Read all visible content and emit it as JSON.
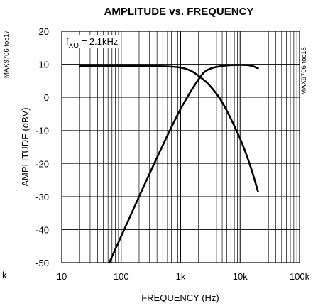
{
  "chart_data": {
    "type": "line",
    "title": "AMPLITUDE vs. FREQUENCY",
    "xlabel": "FREQUENCY (Hz)",
    "ylabel": "AMPLITUDE (dBV)",
    "x_scale": "log",
    "xlim": [
      10,
      100000
    ],
    "ylim": [
      -50,
      20
    ],
    "x_tick_labels": [
      "10",
      "100",
      "1k",
      "10k",
      "100k"
    ],
    "x_tick_values": [
      10,
      100,
      1000,
      10000,
      100000
    ],
    "y_ticks": [
      20,
      10,
      0,
      -10,
      -20,
      -30,
      -40,
      -50
    ],
    "grid": true,
    "annotation": "fXO = 2.1kHz",
    "side_code": "MAX9706 toc18",
    "left_margin_fragments": {
      "top": "MAX9706 toc17",
      "bottom": "k"
    },
    "series": [
      {
        "points": [
          [
            20,
            9.5
          ],
          [
            100,
            9.5
          ],
          [
            500,
            9.4
          ],
          [
            1000,
            9.0
          ],
          [
            1500,
            8.0
          ],
          [
            2100,
            6.2
          ],
          [
            3000,
            3.8
          ],
          [
            5000,
            -1.5
          ],
          [
            10000,
            -12.5
          ],
          [
            15000,
            -21.0
          ],
          [
            20000,
            -28.5
          ]
        ]
      },
      {
        "points": [
          [
            63,
            -50
          ],
          [
            100,
            -42
          ],
          [
            200,
            -30
          ],
          [
            500,
            -14.5
          ],
          [
            1000,
            -3.5
          ],
          [
            2100,
            6.0
          ],
          [
            3000,
            8.5
          ],
          [
            5000,
            9.5
          ],
          [
            10000,
            9.8
          ],
          [
            15000,
            9.6
          ],
          [
            20000,
            8.8
          ]
        ]
      }
    ]
  }
}
